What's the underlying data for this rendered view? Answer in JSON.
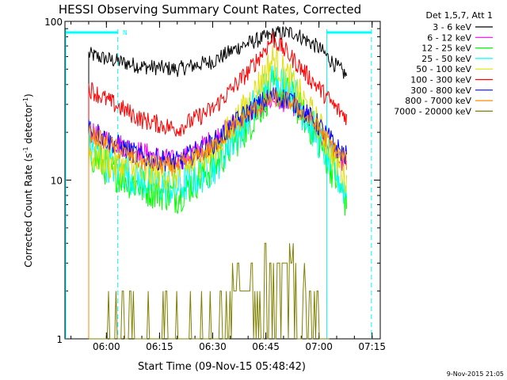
{
  "chart_data": {
    "type": "line",
    "title": "HESSI Observing Summary Count Rates, Corrected",
    "xlabel": "Start Time (09-Nov-15 05:48:42)",
    "ylabel_main": "Corrected Count Rate (s",
    "ylabel_sup1": "-1",
    "ylabel_mid": " detector",
    "ylabel_sup2": "-1",
    "ylabel_end": ")",
    "yscale": "log",
    "ylim": [
      1,
      100
    ],
    "xlim_minutes": [
      -11.7,
      77.3
    ],
    "x_ticks": [
      {
        "t": 0,
        "label": "06:00"
      },
      {
        "t": 15,
        "label": "06:15"
      },
      {
        "t": 30,
        "label": "06:30"
      },
      {
        "t": 45,
        "label": "06:45"
      },
      {
        "t": 60,
        "label": "07:00"
      },
      {
        "t": 75,
        "label": "07:15"
      }
    ],
    "y_ticks": [
      {
        "v": 1,
        "label": "1"
      },
      {
        "v": 10,
        "label": "10"
      },
      {
        "v": 100,
        "label": "100"
      }
    ],
    "legend_title": "Det 1,5,7, Att 1",
    "legend_position": "right",
    "footer": "9-Nov-2015 21:05",
    "annotation": {
      "label": "N",
      "color": "#00ffff"
    },
    "series": [
      {
        "name": "3 - 6 keV",
        "color": "#000000",
        "key": [
          [
            -5,
            62
          ],
          [
            0,
            58
          ],
          [
            10,
            52
          ],
          [
            20,
            50
          ],
          [
            30,
            56
          ],
          [
            38,
            70
          ],
          [
            48,
            84
          ],
          [
            53,
            85
          ],
          [
            60,
            68
          ],
          [
            65,
            52
          ],
          [
            68,
            45
          ]
        ]
      },
      {
        "name": "6 - 12 keV",
        "color": "#ff00ff",
        "key": [
          [
            -5,
            20
          ],
          [
            0,
            18
          ],
          [
            10,
            15
          ],
          [
            20,
            13
          ],
          [
            30,
            18
          ],
          [
            40,
            26
          ],
          [
            47,
            32
          ],
          [
            52,
            31
          ],
          [
            60,
            20
          ],
          [
            65,
            14
          ],
          [
            68,
            12
          ]
        ]
      },
      {
        "name": "12 - 25 keV",
        "color": "#00ff00",
        "key": [
          [
            -5,
            15
          ],
          [
            0,
            12
          ],
          [
            10,
            9
          ],
          [
            20,
            8
          ],
          [
            30,
            12
          ],
          [
            40,
            22
          ],
          [
            47,
            38
          ],
          [
            52,
            34
          ],
          [
            60,
            18
          ],
          [
            65,
            10
          ],
          [
            68,
            7
          ]
        ]
      },
      {
        "name": "25 - 50 keV",
        "color": "#00ffff",
        "key": [
          [
            -5,
            16
          ],
          [
            0,
            13
          ],
          [
            10,
            10
          ],
          [
            20,
            9
          ],
          [
            30,
            12
          ],
          [
            40,
            25
          ],
          [
            47,
            45
          ],
          [
            52,
            38
          ],
          [
            60,
            18
          ],
          [
            65,
            11
          ],
          [
            68,
            8
          ]
        ]
      },
      {
        "name": "50 - 100 keV",
        "color": "#e0e000",
        "key": [
          [
            -5,
            15
          ],
          [
            0,
            13
          ],
          [
            10,
            11
          ],
          [
            20,
            11
          ],
          [
            30,
            15
          ],
          [
            40,
            30
          ],
          [
            47,
            58
          ],
          [
            52,
            42
          ],
          [
            60,
            22
          ],
          [
            65,
            13
          ],
          [
            68,
            10
          ]
        ]
      },
      {
        "name": "100 - 300 keV",
        "color": "#ff0000",
        "key": [
          [
            -5,
            38
          ],
          [
            0,
            32
          ],
          [
            10,
            24
          ],
          [
            20,
            21
          ],
          [
            30,
            28
          ],
          [
            40,
            48
          ],
          [
            47,
            78
          ],
          [
            52,
            60
          ],
          [
            60,
            38
          ],
          [
            65,
            28
          ],
          [
            68,
            25
          ]
        ]
      },
      {
        "name": "300 - 800 keV",
        "color": "#0000ff",
        "key": [
          [
            -5,
            22
          ],
          [
            0,
            18
          ],
          [
            10,
            14
          ],
          [
            20,
            13
          ],
          [
            30,
            17
          ],
          [
            40,
            27
          ],
          [
            47,
            34
          ],
          [
            52,
            32
          ],
          [
            60,
            22
          ],
          [
            65,
            16
          ],
          [
            68,
            14
          ]
        ]
      },
      {
        "name": "800 - 7000 keV",
        "color": "#ff8800",
        "key": [
          [
            -5,
            20
          ],
          [
            0,
            17
          ],
          [
            10,
            13
          ],
          [
            20,
            12
          ],
          [
            30,
            16
          ],
          [
            40,
            26
          ],
          [
            47,
            33
          ],
          [
            52,
            31
          ],
          [
            60,
            21
          ],
          [
            65,
            15
          ],
          [
            68,
            13
          ]
        ]
      },
      {
        "name": "7000 - 20000 keV",
        "color": "#808000",
        "key": [
          [
            -5,
            1.6
          ],
          [
            0,
            1.5
          ],
          [
            10,
            1.0
          ],
          [
            25,
            1.3
          ],
          [
            35,
            2.0
          ],
          [
            42,
            2.5
          ],
          [
            48,
            3.2
          ],
          [
            52,
            3.0
          ],
          [
            56,
            2.0
          ],
          [
            60,
            1.5
          ],
          [
            63,
            1.3
          ]
        ]
      }
    ]
  }
}
